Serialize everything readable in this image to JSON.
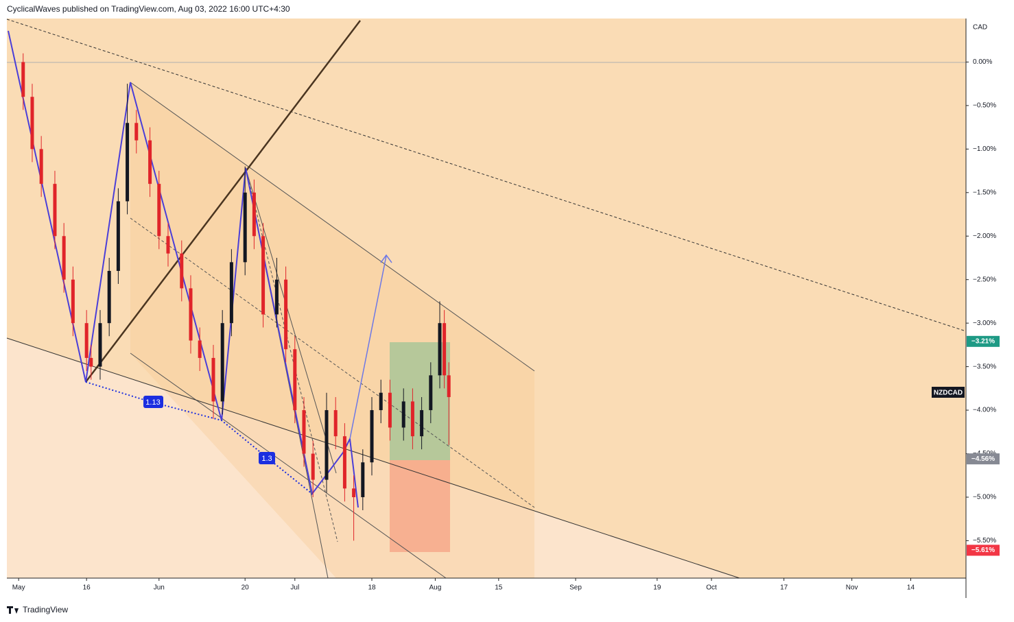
{
  "header": "CyclicalWaves published on TradingView.com, Aug 03, 2022 16:00 UTC+4:30",
  "footer": "TradingView",
  "chart_data": {
    "type": "candlestick",
    "symbol": "NZDCAD",
    "currency": "CAD",
    "up_color": "#131722",
    "down_color": "#e0242a",
    "x": [
      1,
      3,
      5,
      8,
      10,
      12,
      15,
      16,
      18,
      20,
      22,
      24,
      26,
      29,
      31,
      33,
      36,
      38,
      40,
      43,
      45,
      47,
      50,
      52,
      54,
      57,
      59,
      61,
      63,
      65,
      68,
      70,
      72,
      74,
      76,
      78,
      80,
      82,
      85,
      87,
      89,
      91,
      93,
      94,
      95
    ],
    "open": [
      0.0,
      -0.4,
      -1.0,
      -1.4,
      -2.0,
      -2.5,
      -3.0,
      -3.4,
      -3.5,
      -3.0,
      -2.4,
      -1.6,
      -0.7,
      -0.9,
      -1.4,
      -2.0,
      -2.2,
      -2.6,
      -3.2,
      -3.4,
      -3.9,
      -3.0,
      -2.3,
      -1.5,
      -2.0,
      -2.9,
      -2.5,
      -3.3,
      -4.0,
      -4.5,
      -4.8,
      -4.0,
      -4.3,
      -4.9,
      -5.0,
      -4.6,
      -4.0,
      -3.8,
      -4.2,
      -3.9,
      -4.3,
      -4.0,
      -3.6,
      -3.0,
      -3.6
    ],
    "high": [
      0.1,
      -0.25,
      -0.85,
      -1.25,
      -1.85,
      -2.35,
      -2.85,
      -3.25,
      -2.85,
      -2.25,
      -1.45,
      -0.25,
      -0.55,
      -0.75,
      -1.25,
      -1.85,
      -2.05,
      -2.45,
      -3.05,
      -3.25,
      -2.85,
      -2.15,
      -1.2,
      -1.35,
      -1.85,
      -2.25,
      -2.35,
      -3.15,
      -3.85,
      -4.35,
      -3.8,
      -3.85,
      -4.15,
      -4.75,
      -4.45,
      -3.85,
      -3.65,
      -3.65,
      -3.75,
      -3.75,
      -3.85,
      -3.45,
      -2.75,
      -2.85,
      -3.45
    ],
    "low": [
      -0.55,
      -1.15,
      -1.55,
      -2.15,
      -2.65,
      -3.15,
      -3.55,
      -3.65,
      -3.65,
      -3.15,
      -2.55,
      -1.75,
      -1.05,
      -1.55,
      -2.15,
      -2.35,
      -2.75,
      -3.35,
      -3.55,
      -4.1,
      -4.05,
      -3.15,
      -2.45,
      -2.15,
      -3.05,
      -3.05,
      -3.45,
      -4.15,
      -4.65,
      -5.0,
      -4.95,
      -4.45,
      -5.05,
      -5.5,
      -5.15,
      -4.75,
      -4.15,
      -4.35,
      -4.35,
      -4.45,
      -4.45,
      -4.15,
      -3.75,
      -3.75,
      -4.4
    ],
    "close": [
      -0.4,
      -1.0,
      -1.4,
      -2.0,
      -2.5,
      -3.0,
      -3.4,
      -3.5,
      -3.0,
      -2.4,
      -1.6,
      -0.7,
      -0.9,
      -1.4,
      -2.0,
      -2.2,
      -2.6,
      -3.2,
      -3.4,
      -3.9,
      -3.0,
      -2.3,
      -1.5,
      -2.0,
      -2.9,
      -2.5,
      -3.3,
      -4.0,
      -4.5,
      -4.8,
      -4.0,
      -4.3,
      -4.9,
      -5.0,
      -4.6,
      -4.0,
      -3.8,
      -4.2,
      -3.9,
      -4.3,
      -4.0,
      -3.6,
      -3.0,
      -3.6,
      -3.85
    ],
    "xlim": [
      -2.6,
      209.2
    ],
    "xticks": [
      {
        "value": 0,
        "label": "May"
      },
      {
        "value": 15,
        "label": "16"
      },
      {
        "value": 31,
        "label": "Jun"
      },
      {
        "value": 50,
        "label": "20"
      },
      {
        "value": 61,
        "label": "Jul"
      },
      {
        "value": 78,
        "label": "18"
      },
      {
        "value": 92,
        "label": "Aug"
      },
      {
        "value": 106,
        "label": "15"
      },
      {
        "value": 123,
        "label": "Sep"
      },
      {
        "value": 141,
        "label": "19"
      },
      {
        "value": 153,
        "label": "Oct"
      },
      {
        "value": 169,
        "label": "17"
      },
      {
        "value": 184,
        "label": "Nov"
      },
      {
        "value": 197,
        "label": "14"
      }
    ],
    "ylim": [
      -5.93,
      0.5
    ],
    "yticks": [
      {
        "value": 0,
        "label": "0.00%"
      },
      {
        "value": -0.5,
        "label": "−0.50%"
      },
      {
        "value": -1,
        "label": "−1.00%"
      },
      {
        "value": -1.5,
        "label": "−1.50%"
      },
      {
        "value": -2,
        "label": "−2.00%"
      },
      {
        "value": -2.5,
        "label": "−2.50%"
      },
      {
        "value": -3,
        "label": "−3.00%"
      },
      {
        "value": -3.5,
        "label": "−3.50%"
      },
      {
        "value": -4,
        "label": "−4.00%"
      },
      {
        "value": -4.5,
        "label": "−4.50%"
      },
      {
        "value": -5,
        "label": "−5.00%"
      },
      {
        "value": -5.5,
        "label": "−5.50%"
      }
    ],
    "price_labels": [
      {
        "value": -3.21,
        "label": "−3.21%",
        "color": "#1e9a85"
      },
      {
        "value": -4.56,
        "label": "−4.56%",
        "color": "#868993"
      },
      {
        "value": -5.61,
        "label": "−5.61%",
        "color": "#f23645"
      }
    ],
    "annotations": [
      "1.13",
      "1.3"
    ]
  }
}
